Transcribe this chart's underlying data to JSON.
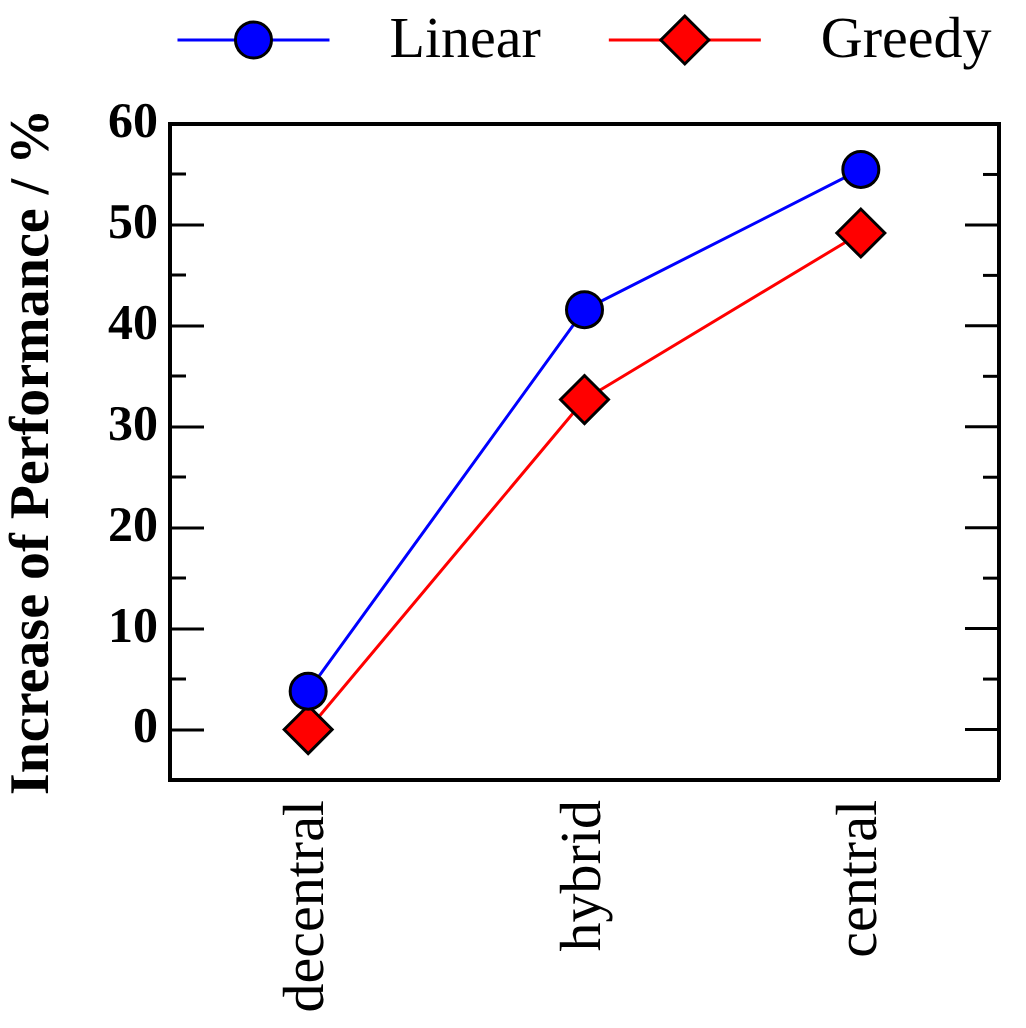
{
  "chart_data": {
    "type": "line",
    "ylabel": "Increase of Performance / %",
    "categories": [
      "decentral",
      "hybrid",
      "central"
    ],
    "series": [
      {
        "name": "Linear",
        "color": "#0000ff",
        "marker": "circle",
        "values": [
          3.8,
          41.6,
          55.5
        ]
      },
      {
        "name": "Greedy",
        "color": "#ff0000",
        "marker": "diamond",
        "values": [
          0,
          32.7,
          49.2
        ]
      }
    ],
    "ylim": [
      -5,
      60
    ],
    "yticks": [
      0,
      {
        "value": 5,
        "label": null
      },
      10,
      {
        "value": 15,
        "label": null
      },
      20,
      {
        "value": 25,
        "label": null
      },
      30,
      {
        "value": 35,
        "label": null
      },
      40,
      {
        "value": 45,
        "label": null
      },
      50,
      {
        "value": 55,
        "label": null
      },
      60
    ],
    "grid": false,
    "legend": "top",
    "line_style": "solid"
  }
}
